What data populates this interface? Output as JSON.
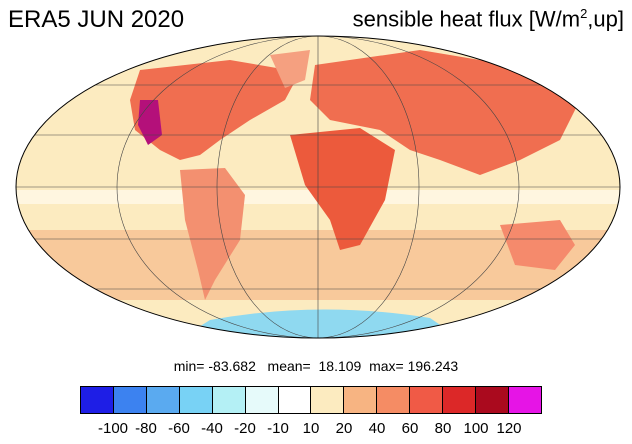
{
  "header": {
    "left": "ERA5 JUN 2020",
    "right_main": "sensible heat flux [W/m",
    "right_sup": "2",
    "right_tail": ",up]"
  },
  "stats": "min= -83.682   mean=  18.109  max= 196.243",
  "colorbar": {
    "colors": [
      "#1e1ee6",
      "#3c82f0",
      "#5aaaf0",
      "#78d2f5",
      "#b4f0f5",
      "#e6fafa",
      "#ffffff",
      "#fcebc0",
      "#f7b482",
      "#f58c64",
      "#f05a46",
      "#dc2828",
      "#aa0a1e",
      "#e614e6"
    ],
    "labels": [
      "-100",
      "-80",
      "-60",
      "-40",
      "-20",
      "-10",
      "10",
      "20",
      "40",
      "60",
      "80",
      "100",
      "120"
    ]
  },
  "map": {
    "projection": "Mollweide",
    "ocean_color": "#fcebc0",
    "land_color": "#f06e50"
  }
}
